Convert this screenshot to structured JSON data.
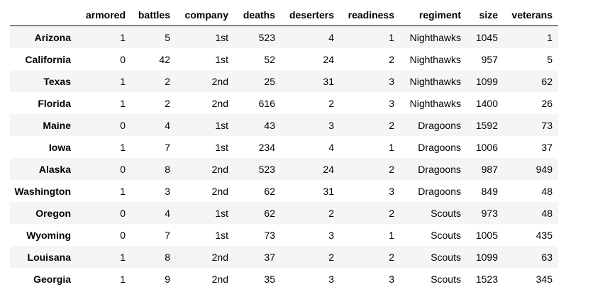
{
  "table": {
    "columns": [
      "",
      "armored",
      "battles",
      "company",
      "deaths",
      "deserters",
      "readiness",
      "regiment",
      "size",
      "veterans"
    ],
    "rows": [
      {
        "index": "Arizona",
        "cells": [
          "1",
          "5",
          "1st",
          "523",
          "4",
          "1",
          "Nighthawks",
          "1045",
          "1"
        ]
      },
      {
        "index": "California",
        "cells": [
          "0",
          "42",
          "1st",
          "52",
          "24",
          "2",
          "Nighthawks",
          "957",
          "5"
        ]
      },
      {
        "index": "Texas",
        "cells": [
          "1",
          "2",
          "2nd",
          "25",
          "31",
          "3",
          "Nighthawks",
          "1099",
          "62"
        ]
      },
      {
        "index": "Florida",
        "cells": [
          "1",
          "2",
          "2nd",
          "616",
          "2",
          "3",
          "Nighthawks",
          "1400",
          "26"
        ]
      },
      {
        "index": "Maine",
        "cells": [
          "0",
          "4",
          "1st",
          "43",
          "3",
          "2",
          "Dragoons",
          "1592",
          "73"
        ]
      },
      {
        "index": "Iowa",
        "cells": [
          "1",
          "7",
          "1st",
          "234",
          "4",
          "1",
          "Dragoons",
          "1006",
          "37"
        ]
      },
      {
        "index": "Alaska",
        "cells": [
          "0",
          "8",
          "2nd",
          "523",
          "24",
          "2",
          "Dragoons",
          "987",
          "949"
        ]
      },
      {
        "index": "Washington",
        "cells": [
          "1",
          "3",
          "2nd",
          "62",
          "31",
          "3",
          "Dragoons",
          "849",
          "48"
        ]
      },
      {
        "index": "Oregon",
        "cells": [
          "0",
          "4",
          "1st",
          "62",
          "2",
          "2",
          "Scouts",
          "973",
          "48"
        ]
      },
      {
        "index": "Wyoming",
        "cells": [
          "0",
          "7",
          "1st",
          "73",
          "3",
          "1",
          "Scouts",
          "1005",
          "435"
        ]
      },
      {
        "index": "Louisana",
        "cells": [
          "1",
          "8",
          "2nd",
          "37",
          "2",
          "2",
          "Scouts",
          "1099",
          "63"
        ]
      },
      {
        "index": "Georgia",
        "cells": [
          "1",
          "9",
          "2nd",
          "35",
          "3",
          "3",
          "Scouts",
          "1523",
          "345"
        ]
      }
    ]
  }
}
